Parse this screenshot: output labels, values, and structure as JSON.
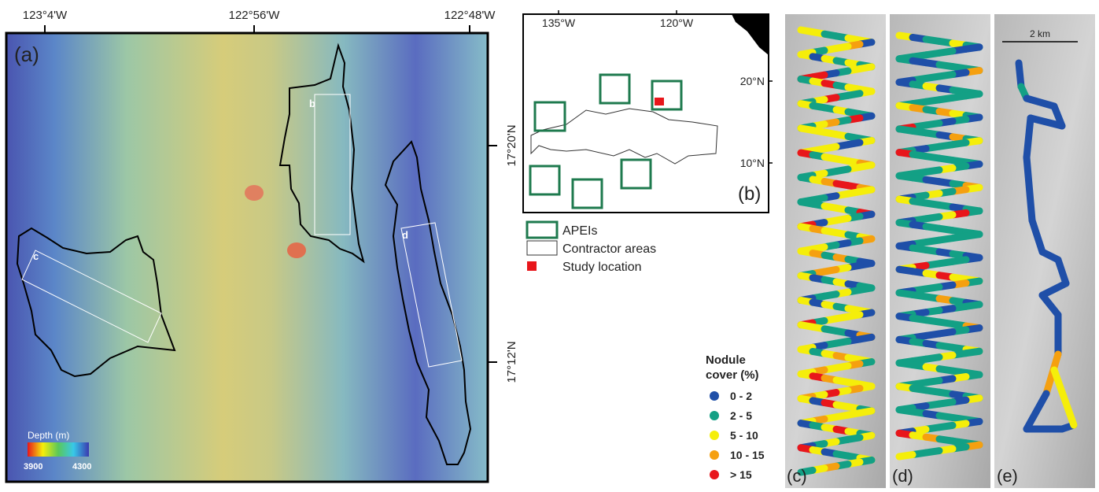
{
  "map_a": {
    "label": "(a)",
    "lon_labels": [
      "123°4'W",
      "122°56'W",
      "122°48'W"
    ],
    "lat_labels": [
      "17°20'N",
      "17°12'N"
    ],
    "area_labels": [
      "b",
      "c",
      "d"
    ],
    "depth_legend": {
      "title": "Depth (m)",
      "min": "3900",
      "max": "4300"
    }
  },
  "map_b": {
    "label": "(b)",
    "lon_labels": [
      "135°W",
      "120°W"
    ],
    "lat_labels": [
      "20°N",
      "10°N"
    ]
  },
  "legend": {
    "apeis": "APEIs",
    "contractor": "Contractor areas",
    "study": "Study location"
  },
  "nodule_legend": {
    "title": [
      "Nodule",
      "cover (%)"
    ],
    "classes": [
      {
        "label": "0 - 2",
        "color": "#1f4fa8"
      },
      {
        "label": "2 - 5",
        "color": "#13a085"
      },
      {
        "label": "5 - 10",
        "color": "#f5ee0a"
      },
      {
        "label": "10 - 15",
        "color": "#f5a010"
      },
      {
        "label": "> 15",
        "color": "#e8161b"
      }
    ]
  },
  "panels": {
    "c": "(c)",
    "d": "(d)",
    "e": "(e)",
    "scale_bar": "2 km"
  }
}
